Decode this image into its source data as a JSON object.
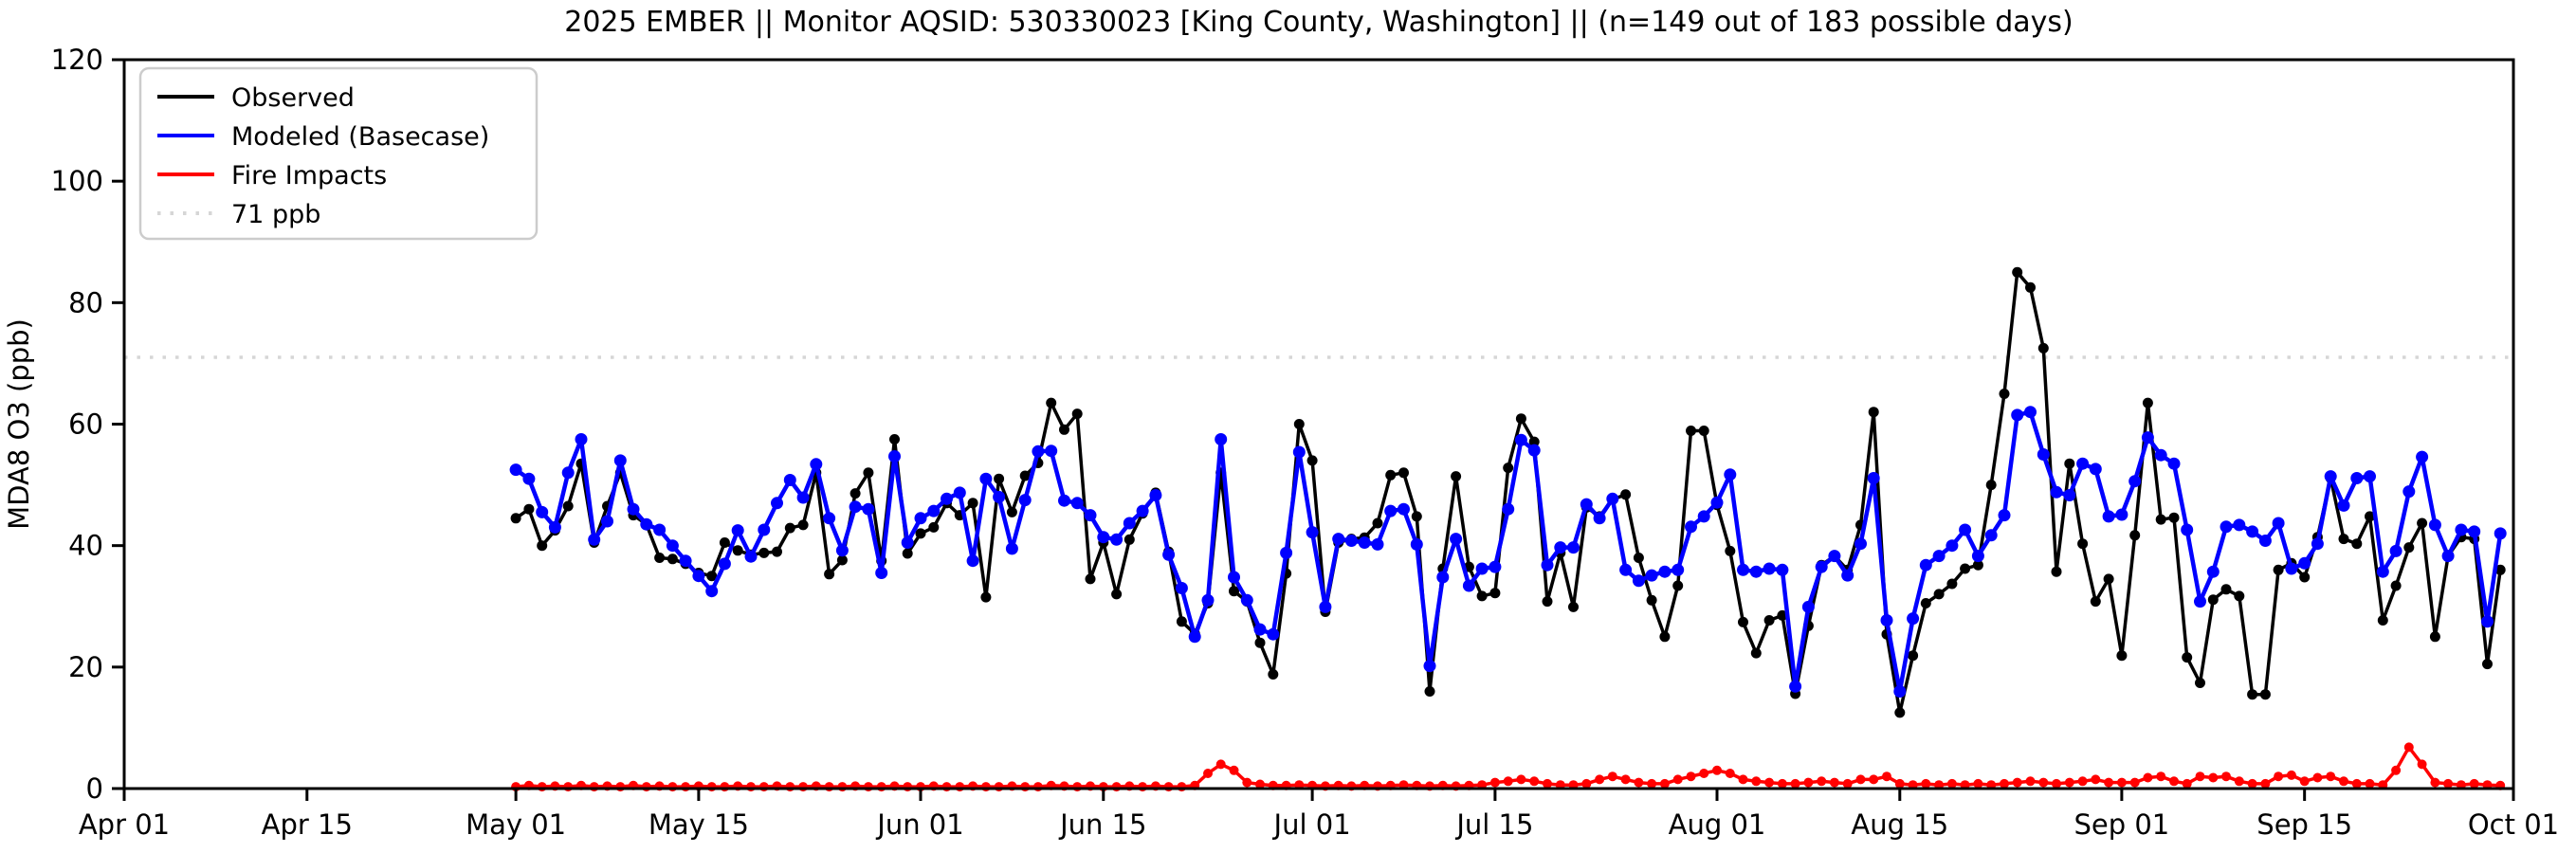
{
  "page": {
    "title": "2025 EMBER || Monitor AQSID: 530330023 [King County, Washington] || (n=149 out of 183 possible days)"
  },
  "chart_data": {
    "type": "line",
    "title": "2025 EMBER || Monitor AQSID: 530330023 [King County, Washington] || (n=149 out of 183 possible days)",
    "xlabel": "",
    "ylabel": "MDA8 O3 (ppb)",
    "ylim": [
      0,
      120
    ],
    "yticks": [
      0,
      20,
      40,
      60,
      80,
      100,
      120
    ],
    "grid": false,
    "legend_position": "upper-left",
    "x_axis": {
      "start": "Apr 01",
      "end": "Oct 01",
      "total_days": 183,
      "tick_labels": [
        "Apr 01",
        "Apr 15",
        "May 01",
        "May 15",
        "Jun 01",
        "Jun 15",
        "Jul 01",
        "Jul 15",
        "Aug 01",
        "Aug 15",
        "Sep 01",
        "Sep 15",
        "Oct 01"
      ],
      "tick_day_offsets": [
        0,
        14,
        30,
        44,
        61,
        75,
        91,
        105,
        122,
        136,
        153,
        167,
        183
      ]
    },
    "threshold": {
      "value": 71,
      "label": "71 ppb",
      "color": "#d6d6d6",
      "style": "dotted"
    },
    "data_start_date": "May 01",
    "data_end_date": "Sep 30",
    "data_start_day_offset": 30,
    "cadence": "daily",
    "series": [
      {
        "name": "Observed",
        "color": "#000000",
        "values": [
          44.5,
          46,
          40,
          42.5,
          46.5,
          53.5,
          40.5,
          46.5,
          52,
          45,
          43.5,
          38,
          37.8,
          37,
          35.5,
          35,
          40.5,
          39.2,
          38.5,
          38.8,
          39,
          42.9,
          43.4,
          52,
          35.3,
          37.6,
          48.6,
          52,
          37.5,
          57.5,
          38.7,
          42,
          43,
          47,
          45,
          47,
          31.5,
          51,
          45.5,
          51.5,
          53.6,
          63.5,
          59.1,
          61.7,
          34.5,
          40.5,
          32,
          41,
          45.3,
          48.7,
          39,
          27.5,
          25.5,
          30.5,
          52,
          32.5,
          30.8,
          24,
          18.8,
          35.4,
          60,
          54,
          29.1,
          40.5,
          41.1,
          41.3,
          43.7,
          51.6,
          52,
          44.8,
          16,
          36.2,
          51.4,
          36.5,
          31.7,
          32.2,
          52.8,
          60.9,
          57.1,
          30.8,
          38.8,
          29.9,
          46.3,
          44.8,
          47.6,
          48.4,
          38,
          31,
          25,
          33.4,
          58.9,
          58.9,
          46.7,
          39.1,
          27.4,
          22.3,
          27.7,
          28.5,
          15.6,
          26.8,
          36.8,
          38.3,
          36,
          43.4,
          62,
          25.4,
          12.5,
          21.9,
          30.5,
          32,
          33.7,
          36.2,
          36.8,
          50,
          65,
          85,
          82.5,
          72.5,
          35.7,
          53.5,
          40.3,
          30.8,
          34.5,
          21.9,
          41.7,
          63.5,
          44.3,
          44.6,
          21.6,
          17.4,
          31.1,
          32.8,
          31.7,
          15.5,
          15.5,
          36,
          37.1,
          34.8,
          41.4,
          51.1,
          41.1,
          40.3,
          44.8,
          27.7,
          33.4,
          39.7,
          43.7,
          25,
          38.3,
          41.4,
          41.1,
          20.5,
          36
        ]
      },
      {
        "name": "Modeled (Basecase)",
        "color": "#0000ff",
        "values": [
          52.5,
          51,
          45.5,
          43,
          52,
          57.5,
          41,
          44,
          54,
          46,
          43.5,
          42.6,
          40,
          37.5,
          35,
          32.5,
          37,
          42.5,
          38.2,
          42.6,
          47,
          50.8,
          47.9,
          53.4,
          44.5,
          39.2,
          46.4,
          46,
          35.5,
          54.7,
          40.5,
          44.5,
          45.7,
          47.7,
          48.7,
          37.5,
          51,
          48,
          39.5,
          47.5,
          55.5,
          55.6,
          47.4,
          47,
          45,
          41.4,
          41,
          43.7,
          45.7,
          48.3,
          38.5,
          33,
          25,
          31,
          57.5,
          34.8,
          31,
          26.2,
          25.4,
          38.8,
          55.4,
          42.2,
          29.9,
          41.1,
          40.8,
          40.5,
          40.2,
          45.7,
          46,
          40.2,
          20.2,
          34.8,
          41.1,
          33.4,
          36.2,
          36.5,
          46,
          57.4,
          55.7,
          36.8,
          39.7,
          39.7,
          46.8,
          44.5,
          47.7,
          36,
          34.2,
          35.1,
          35.7,
          36,
          43.1,
          44.8,
          47.1,
          51.7,
          36,
          35.7,
          36.2,
          36,
          16.8,
          29.9,
          36.5,
          38.3,
          35.1,
          40.3,
          51.1,
          27.7,
          16,
          28,
          36.8,
          38.3,
          40,
          42.6,
          38.3,
          41.7,
          45,
          61.5,
          62,
          55,
          48.8,
          48.3,
          53.5,
          52.6,
          44.8,
          45.1,
          50.6,
          57.8,
          54.9,
          53.5,
          42.6,
          30.8,
          35.7,
          43.1,
          43.4,
          42.3,
          40.8,
          43.7,
          36.2,
          37.1,
          40.3,
          51.4,
          46.6,
          51.1,
          51.4,
          35.7,
          39.1,
          48.9,
          54.6,
          43.4,
          38.3,
          42.6,
          42.3,
          27.5,
          42
        ]
      },
      {
        "name": "Fire Impacts",
        "color": "#ff0000",
        "values": [
          0.3,
          0.5,
          0.3,
          0.4,
          0.3,
          0.5,
          0.3,
          0.4,
          0.3,
          0.5,
          0.3,
          0.4,
          0.3,
          0.3,
          0.4,
          0.3,
          0.3,
          0.4,
          0.3,
          0.3,
          0.4,
          0.3,
          0.3,
          0.4,
          0.3,
          0.3,
          0.4,
          0.3,
          0.3,
          0.4,
          0.3,
          0.3,
          0.4,
          0.3,
          0.3,
          0.4,
          0.3,
          0.3,
          0.4,
          0.3,
          0.3,
          0.5,
          0.4,
          0.3,
          0.4,
          0.3,
          0.3,
          0.4,
          0.3,
          0.4,
          0.3,
          0.3,
          0.5,
          2.5,
          4,
          3,
          1,
          0.7,
          0.5,
          0.5,
          0.6,
          0.5,
          0.4,
          0.5,
          0.4,
          0.5,
          0.4,
          0.5,
          0.6,
          0.5,
          0.4,
          0.5,
          0.4,
          0.5,
          0.6,
          1,
          1.2,
          1.5,
          1.2,
          0.8,
          0.6,
          0.6,
          0.8,
          1.5,
          2,
          1.5,
          1,
          0.8,
          0.8,
          1.5,
          2,
          2.5,
          3,
          2.5,
          1.5,
          1.2,
          1,
          0.8,
          0.8,
          1,
          1.2,
          1,
          0.8,
          1.5,
          1.5,
          2,
          0.8,
          0.6,
          0.8,
          0.6,
          0.8,
          0.6,
          0.8,
          0.6,
          0.8,
          1,
          1.2,
          1,
          0.8,
          1,
          1.2,
          1.5,
          1,
          1,
          1,
          1.8,
          2,
          1.2,
          0.8,
          2,
          1.8,
          2,
          1.2,
          0.8,
          0.8,
          2,
          2.2,
          1.2,
          1.8,
          2,
          1.2,
          0.8,
          0.8,
          0.6,
          3,
          6.8,
          4,
          1,
          0.8,
          0.6,
          0.8,
          0.6,
          0.5
        ]
      }
    ]
  },
  "legend": {
    "items": [
      "Observed",
      "Modeled (Basecase)",
      "Fire Impacts",
      "71 ppb"
    ]
  }
}
